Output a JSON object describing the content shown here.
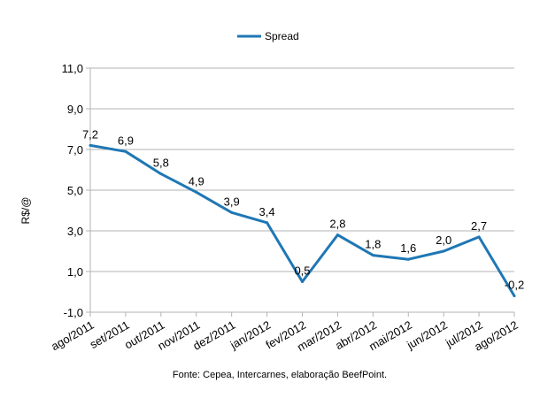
{
  "chart_data": {
    "type": "line",
    "categories": [
      "ago/2011",
      "set/2011",
      "out/2011",
      "nov/2011",
      "dez/2011",
      "jan/2012",
      "fev/2012",
      "mar/2012",
      "abr/2012",
      "mai/2012",
      "jun/2012",
      "jul/2012",
      "ago/2012"
    ],
    "series": [
      {
        "name": "Spread",
        "values": [
          7.2,
          6.9,
          5.8,
          4.9,
          3.9,
          3.4,
          0.5,
          2.8,
          1.8,
          1.6,
          2.0,
          2.7,
          -0.2
        ],
        "labels": [
          "7,2",
          "6,9",
          "5,8",
          "4,9",
          "3,9",
          "3,4",
          "0,5",
          "2,8",
          "1,8",
          "1,6",
          "2,0",
          "2,7",
          "-0,2"
        ],
        "color": "#1F77B4"
      }
    ],
    "ylabel": "R$/@",
    "ylim": [
      -1,
      11
    ],
    "yticks": [
      -1,
      1,
      3,
      5,
      7,
      9,
      11
    ],
    "ytick_labels": [
      "-1,0",
      "1,0",
      "3,0",
      "5,0",
      "7,0",
      "9,0",
      "11,0"
    ],
    "grid": true,
    "legend": "top-center",
    "source": "Fonte: Cepea, Intercarnes, elaboração BeefPoint."
  }
}
